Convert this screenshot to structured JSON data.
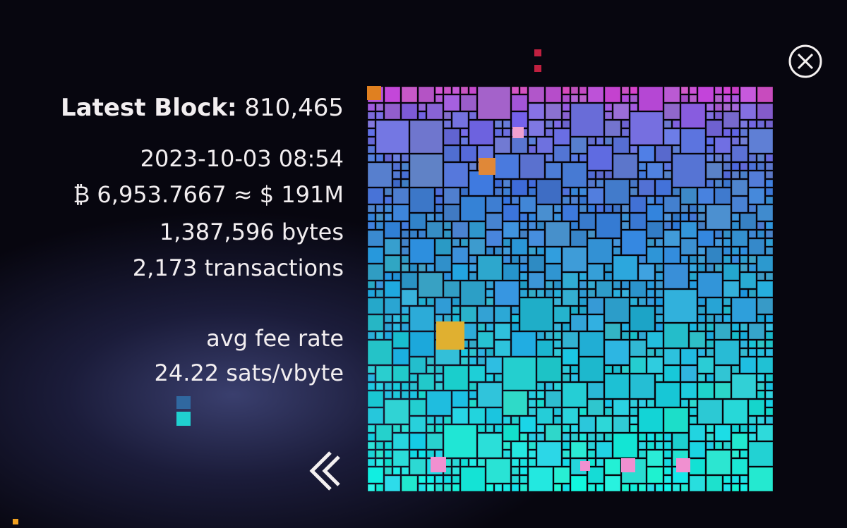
{
  "block_info": {
    "label": "Latest Block:",
    "height": "810,465",
    "timestamp": "2023-10-03 08:54",
    "value": "₿ 6,953.7667 ≈ $ 191M",
    "size": "1,387,596 bytes",
    "tx_count": "2,173 transactions",
    "fee_label": "avg fee rate",
    "fee_rate": "24.22 sats/vbyte"
  }
}
